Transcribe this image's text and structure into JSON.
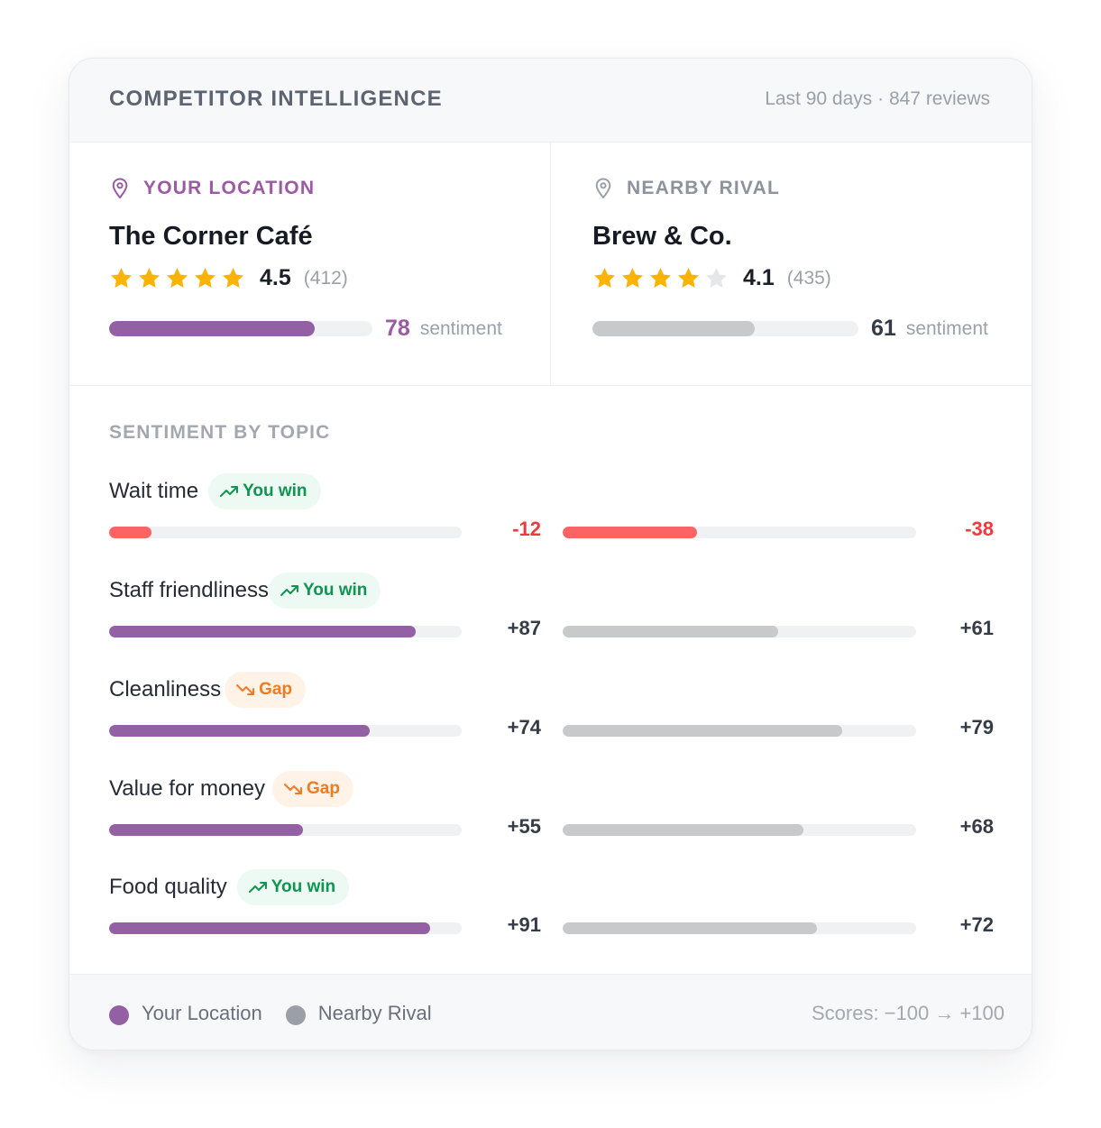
{
  "header": {
    "title": "COMPETITOR INTELLIGENCE",
    "meta": "Last 90 days · 847 reviews"
  },
  "locations": [
    {
      "tag": "YOUR LOCATION",
      "name": "The Corner Café",
      "rating": "4.5",
      "review_count": "(412)",
      "stars_filled": 5,
      "sentiment": 78,
      "sentiment_value": "78",
      "sentiment_label": "sentiment",
      "icon": "location-pin-icon",
      "color": "#9360a3"
    },
    {
      "tag": "NEARBY RIVAL",
      "name": "Brew & Co.",
      "rating": "4.1",
      "review_count": "(435)",
      "stars_filled": 4,
      "sentiment": 61,
      "sentiment_value": "61",
      "sentiment_label": "sentiment",
      "icon": "location-pin-icon",
      "color": "#c8c9cb"
    }
  ],
  "topics_title": "SENTIMENT BY TOPIC",
  "topics": [
    {
      "name": "Wait time",
      "badge": "You win",
      "badge_type": "win",
      "you": -12,
      "you_label": "-12",
      "rival": -38,
      "rival_label": "-38"
    },
    {
      "name": "Staff friendliness",
      "badge": "You win",
      "badge_type": "win",
      "you": 87,
      "you_label": "+87",
      "rival": 61,
      "rival_label": "+61"
    },
    {
      "name": "Cleanliness",
      "badge": "Gap",
      "badge_type": "gap",
      "you": 74,
      "you_label": "+74",
      "rival": 79,
      "rival_label": "+79"
    },
    {
      "name": "Value for money",
      "badge": "Gap",
      "badge_type": "gap",
      "you": 55,
      "you_label": "+55",
      "rival": 68,
      "rival_label": "+68"
    },
    {
      "name": "Food quality",
      "badge": "You win",
      "badge_type": "win",
      "you": 91,
      "you_label": "+91",
      "rival": 72,
      "rival_label": "+72"
    }
  ],
  "colors": {
    "you": "#9360a3",
    "rival": "#c8c9cb",
    "negative": "#fc6365",
    "star": "#fbb405",
    "star_empty": "#e6e7e9"
  },
  "footer": {
    "legend": [
      {
        "label": "Your Location",
        "color": "#9360a3"
      },
      {
        "label": "Nearby Rival",
        "color": "#9ba0a8"
      }
    ],
    "scale_note": "Scores: −100 → +100"
  }
}
